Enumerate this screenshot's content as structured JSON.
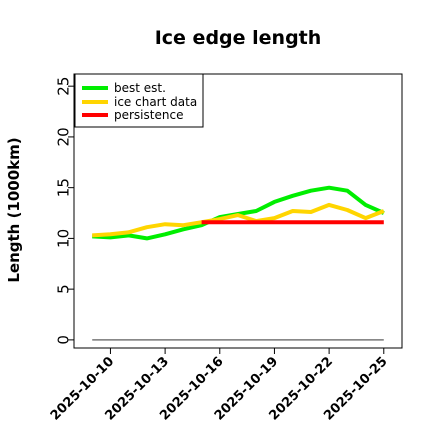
{
  "chart_data": {
    "type": "line",
    "title": "Ice edge length",
    "xlabel": "",
    "ylabel": "Length (1000km)",
    "x": [
      "2025-10-09",
      "2025-10-10",
      "2025-10-11",
      "2025-10-12",
      "2025-10-13",
      "2025-10-14",
      "2025-10-15",
      "2025-10-16",
      "2025-10-17",
      "2025-10-18",
      "2025-10-19",
      "2025-10-20",
      "2025-10-21",
      "2025-10-22",
      "2025-10-23",
      "2025-10-24",
      "2025-10-25"
    ],
    "xticks": [
      "2025-10-10",
      "2025-10-13",
      "2025-10-16",
      "2025-10-19",
      "2025-10-22",
      "2025-10-25"
    ],
    "xlim": [
      "2025-10-08",
      "2025-10-26"
    ],
    "ylim": [
      -0.8,
      26.2
    ],
    "yticks": [
      0,
      5,
      10,
      15,
      20,
      25
    ],
    "grid": false,
    "legend_position": "top-left",
    "series": [
      {
        "name": "best est.",
        "color": "#00ee00",
        "values": [
          10.2,
          10.1,
          10.3,
          10.0,
          10.4,
          10.9,
          11.3,
          12.1,
          12.4,
          12.7,
          13.6,
          14.2,
          14.7,
          15.0,
          14.7,
          13.3,
          12.5
        ]
      },
      {
        "name": "ice chart data",
        "color": "#ffd500",
        "values": [
          10.3,
          10.4,
          10.6,
          11.1,
          11.4,
          11.3,
          11.6,
          11.9,
          12.3,
          11.7,
          12.0,
          12.7,
          12.6,
          13.3,
          12.8,
          12.0,
          12.7
        ]
      },
      {
        "name": "persistence",
        "color": "#ff0000",
        "values": [
          null,
          null,
          null,
          null,
          null,
          null,
          11.6,
          11.6,
          11.6,
          11.6,
          11.6,
          11.6,
          11.6,
          11.6,
          11.6,
          11.6,
          11.6
        ]
      }
    ],
    "zero_line": {
      "value": 0,
      "from": "2025-10-09",
      "to": "2025-10-25",
      "color": "#777777"
    }
  }
}
